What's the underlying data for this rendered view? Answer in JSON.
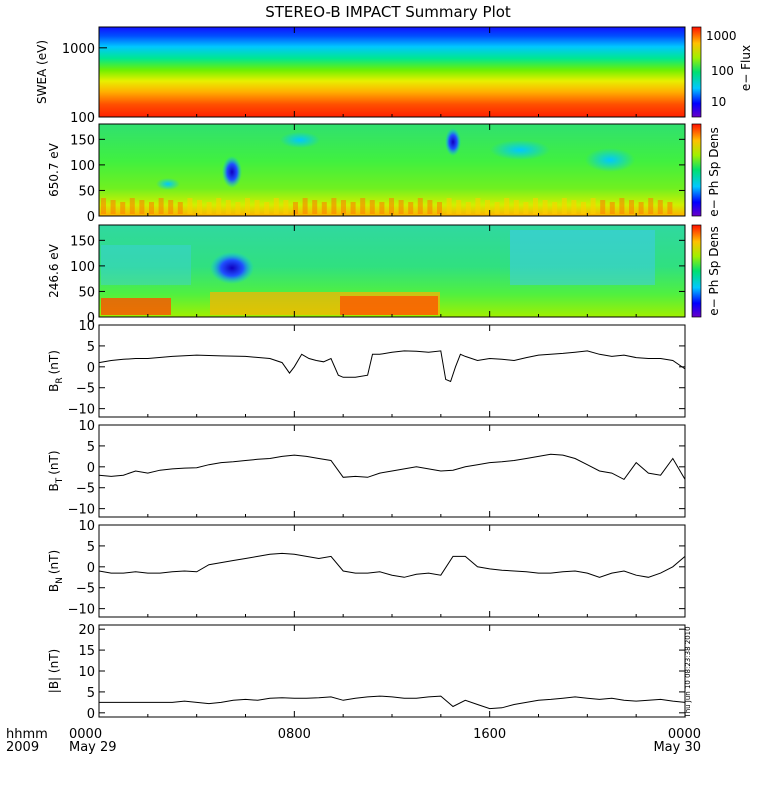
{
  "title": "STEREO-B IMPACT Summary Plot",
  "timestamp_label": "Thu Jun 10 08:23:38 2010",
  "x_axis": {
    "corner_top": "hhmm",
    "corner_bottom": "2009",
    "ticks": [
      {
        "label": "0000",
        "sub": "May 29",
        "hour": 0
      },
      {
        "label": "0800",
        "sub": "",
        "hour": 8
      },
      {
        "label": "1600",
        "sub": "",
        "hour": 16
      },
      {
        "label": "0000",
        "sub": "May 30",
        "hour": 24
      }
    ],
    "range_hours": [
      0,
      24
    ]
  },
  "colorbars": [
    {
      "label": "e− Flux",
      "ticks": [
        "1000",
        "100",
        "10"
      ]
    },
    {
      "label": "e− Ph Sp Dens",
      "ticks": []
    },
    {
      "label": "e− Ph Sp Dens",
      "ticks": []
    }
  ],
  "chart_data": [
    {
      "type": "heatmap",
      "ylabel": "SWEA (eV)",
      "yscale": "log",
      "ylim": [
        100,
        2000
      ],
      "yticks": [
        "1000",
        "100"
      ],
      "description_values": {
        "color_scale": "rainbow",
        "low_energy": "high flux (red)",
        "high_energy": "low flux (blue)"
      }
    },
    {
      "type": "heatmap",
      "ylabel": "650.7 eV",
      "ylim": [
        0,
        180
      ],
      "yticks": [
        "150",
        "100",
        "50",
        "0"
      ]
    },
    {
      "type": "heatmap",
      "ylabel": "246.6 eV",
      "ylim": [
        0,
        180
      ],
      "yticks": [
        "150",
        "100",
        "50",
        "0"
      ]
    },
    {
      "type": "line",
      "ylabel": "B",
      "ylabel_sub": "R",
      "ylabel_unit": "(nT)",
      "ylim": [
        -12,
        10
      ],
      "yticks": [
        "10",
        "5",
        "0",
        "−5",
        "−10"
      ],
      "x": [
        0,
        0.5,
        1,
        1.5,
        2,
        3,
        4,
        5,
        6,
        7,
        7.5,
        7.8,
        8,
        8.3,
        8.6,
        8.9,
        9.2,
        9.5,
        9.8,
        10,
        10.5,
        11,
        11.2,
        11.5,
        12,
        12.5,
        13,
        13.5,
        14,
        14.2,
        14.4,
        14.6,
        14.8,
        15,
        15.5,
        16,
        16.5,
        17,
        17.5,
        18,
        18.5,
        19,
        19.5,
        20,
        20.5,
        21,
        21.5,
        22,
        22.5,
        23,
        23.5,
        24
      ],
      "y": [
        1,
        1.5,
        1.8,
        2,
        2,
        2.5,
        2.8,
        2.6,
        2.5,
        2,
        1,
        -1.5,
        0,
        3,
        2,
        1.5,
        1.2,
        2,
        -2,
        -2.5,
        -2.5,
        -2,
        3,
        3,
        3.5,
        3.8,
        3.7,
        3.5,
        3.8,
        -3,
        -3.5,
        0,
        3,
        2.5,
        1.5,
        2,
        1.8,
        1.5,
        2.2,
        2.8,
        3,
        3.2,
        3.5,
        3.8,
        3,
        2.5,
        2.8,
        2.2,
        2,
        2,
        1.5,
        -0.5
      ]
    },
    {
      "type": "line",
      "ylabel": "B",
      "ylabel_sub": "T",
      "ylabel_unit": "(nT)",
      "ylim": [
        -12,
        10
      ],
      "yticks": [
        "10",
        "5",
        "0",
        "−5",
        "−10"
      ],
      "x": [
        0,
        0.5,
        1,
        1.5,
        2,
        2.5,
        3,
        3.5,
        4,
        4.5,
        5,
        5.5,
        6,
        6.5,
        7,
        7.5,
        8,
        8.5,
        9,
        9.5,
        10,
        10.5,
        11,
        11.5,
        12,
        12.5,
        13,
        13.5,
        14,
        14.5,
        15,
        15.5,
        16,
        16.5,
        17,
        17.5,
        18,
        18.5,
        19,
        19.5,
        20,
        20.5,
        21,
        21.5,
        22,
        22.5,
        23,
        23.5,
        24
      ],
      "y": [
        -2,
        -2.3,
        -2,
        -1,
        -1.5,
        -0.8,
        -0.5,
        -0.3,
        -0.2,
        0.5,
        1,
        1.2,
        1.5,
        1.8,
        2,
        2.5,
        2.8,
        2.5,
        2,
        1.5,
        -2.5,
        -2.3,
        -2.5,
        -1.5,
        -1,
        -0.5,
        0,
        -0.5,
        -1,
        -0.8,
        0,
        0.5,
        1,
        1.2,
        1.5,
        2,
        2.5,
        3,
        2.8,
        2,
        0.5,
        -1,
        -1.5,
        -3,
        1,
        -1.5,
        -2,
        2,
        -3
      ]
    },
    {
      "type": "line",
      "ylabel": "B",
      "ylabel_sub": "N",
      "ylabel_unit": "(nT)",
      "ylim": [
        -12,
        10
      ],
      "yticks": [
        "10",
        "5",
        "0",
        "−5",
        "−10"
      ],
      "x": [
        0,
        0.5,
        1,
        1.5,
        2,
        2.5,
        3,
        3.5,
        4,
        4.5,
        5,
        5.5,
        6,
        6.5,
        7,
        7.5,
        8,
        8.5,
        9,
        9.5,
        10,
        10.5,
        11,
        11.5,
        12,
        12.5,
        13,
        13.5,
        14,
        14.5,
        15,
        15.5,
        16,
        16.5,
        17,
        17.5,
        18,
        18.5,
        19,
        19.5,
        20,
        20.5,
        21,
        21.5,
        22,
        22.5,
        23,
        23.5,
        24
      ],
      "y": [
        -1,
        -1.5,
        -1.5,
        -1.2,
        -1.5,
        -1.5,
        -1.2,
        -1,
        -1.2,
        0.5,
        1,
        1.5,
        2,
        2.5,
        3,
        3.2,
        3,
        2.5,
        2,
        2.5,
        -1,
        -1.5,
        -1.5,
        -1.2,
        -2,
        -2.5,
        -1.8,
        -1.5,
        -2,
        2.5,
        2.5,
        0,
        -0.5,
        -0.8,
        -1,
        -1.2,
        -1.5,
        -1.5,
        -1.2,
        -1,
        -1.5,
        -2.5,
        -1.5,
        -1,
        -2,
        -2.5,
        -1.5,
        0,
        2.5
      ]
    },
    {
      "type": "line",
      "ylabel": "|B| (nT)",
      "ylim": [
        -1,
        21
      ],
      "yticks": [
        "20",
        "15",
        "10",
        "5",
        "0"
      ],
      "x": [
        0,
        0.5,
        1,
        1.5,
        2,
        2.5,
        3,
        3.5,
        4,
        4.5,
        5,
        5.5,
        6,
        6.5,
        7,
        7.5,
        8,
        8.5,
        9,
        9.5,
        10,
        10.5,
        11,
        11.5,
        12,
        12.5,
        13,
        13.5,
        14,
        14.5,
        15,
        15.5,
        16,
        16.5,
        17,
        17.5,
        18,
        18.5,
        19,
        19.5,
        20,
        20.5,
        21,
        21.5,
        22,
        22.5,
        23,
        23.5,
        24
      ],
      "y": [
        2.5,
        2.5,
        2.5,
        2.5,
        2.5,
        2.5,
        2.5,
        2.8,
        2.5,
        2.2,
        2.5,
        3,
        3.2,
        3,
        3.5,
        3.6,
        3.5,
        3.5,
        3.6,
        3.8,
        3,
        3.5,
        3.8,
        4,
        3.8,
        3.5,
        3.5,
        3.8,
        4,
        1.5,
        3,
        2,
        1,
        1.2,
        2,
        2.5,
        3,
        3.2,
        3.5,
        3.8,
        3.5,
        3.2,
        3.5,
        3,
        2.8,
        3,
        3.2,
        2.8,
        2.5
      ]
    }
  ]
}
